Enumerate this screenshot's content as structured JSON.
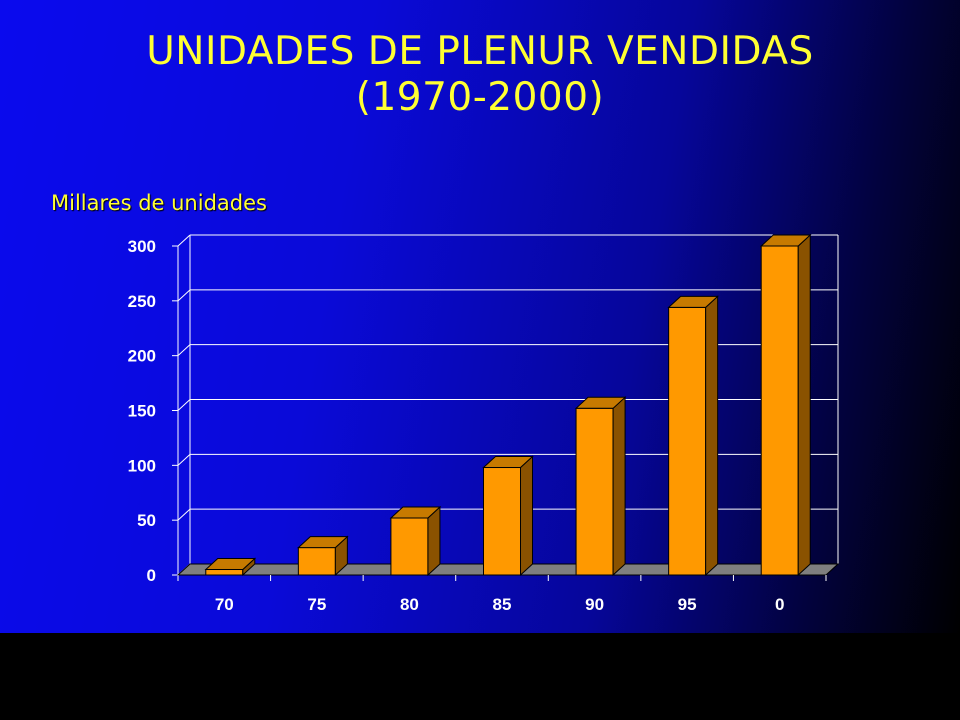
{
  "slide": {
    "title_line_1": "UNIDADES DE PLENUR VENDIDAS",
    "title_line_2": "(1970-2000)"
  },
  "colors": {
    "title": "#ffff33",
    "bar_front": "#ff9900",
    "bar_side": "#8a5200",
    "bar_top": "#c77a00",
    "floor": "#7f7f7f",
    "axis_text": "#ffffff",
    "grid": "#ffffff"
  },
  "chart_data": {
    "type": "bar",
    "style": "3d-column",
    "ylabel": "Millares de unidades",
    "categories": [
      "70",
      "75",
      "80",
      "85",
      "90",
      "95",
      "0"
    ],
    "values": [
      5,
      25,
      52,
      98,
      152,
      244,
      300
    ],
    "ylim": [
      0,
      300
    ],
    "yticks": [
      0,
      50,
      100,
      150,
      200,
      250,
      300
    ],
    "grid": true,
    "legend": "none"
  }
}
